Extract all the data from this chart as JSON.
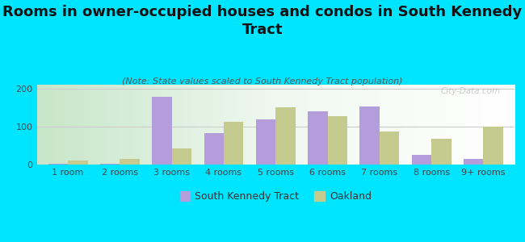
{
  "title": "Rooms in owner-occupied houses and condos in South Kennedy\nTract",
  "subtitle": "(Note: State values scaled to South Kennedy Tract population)",
  "categories": [
    "1 room",
    "2 rooms",
    "3 rooms",
    "4 rooms",
    "5 rooms",
    "6 rooms",
    "7 rooms",
    "8 rooms",
    "9+ rooms"
  ],
  "south_kennedy": [
    2,
    2,
    178,
    82,
    118,
    140,
    152,
    25,
    15
  ],
  "oakland": [
    10,
    15,
    42,
    112,
    150,
    128,
    88,
    68,
    100
  ],
  "color_kennedy": "#b39ddb",
  "color_oakland": "#c5cb8e",
  "background_outer": "#00e5ff",
  "ylim": [
    0,
    210
  ],
  "yticks": [
    0,
    100,
    200
  ],
  "bar_width": 0.38,
  "legend_kennedy": "South Kennedy Tract",
  "legend_oakland": "Oakland",
  "title_fontsize": 13,
  "subtitle_fontsize": 8,
  "tick_fontsize": 8,
  "legend_fontsize": 9,
  "watermark": "City-Data.com"
}
